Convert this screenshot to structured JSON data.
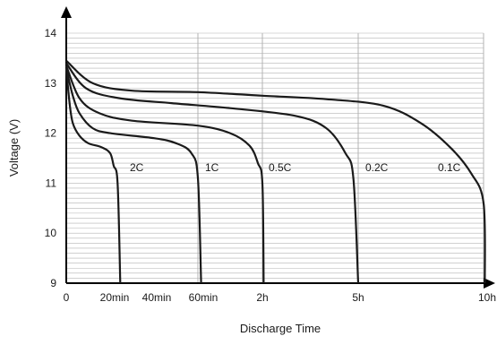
{
  "chart_data": {
    "type": "line",
    "title": "",
    "xlabel": "Discharge Time",
    "ylabel": "Voltage (V)",
    "ylim": [
      9,
      14
    ],
    "yticks": [
      9,
      10,
      11,
      12,
      13,
      14
    ],
    "xticks": [
      {
        "label": "0",
        "hours": 0
      },
      {
        "label": "20min",
        "hours": 0.333
      },
      {
        "label": "40min",
        "hours": 0.667
      },
      {
        "label": "60min",
        "hours": 1
      },
      {
        "label": "2h",
        "hours": 2
      },
      {
        "label": "5h",
        "hours": 5
      },
      {
        "label": "10h",
        "hours": 10
      }
    ],
    "grid": true,
    "line_color": "#1a1a1a",
    "grid_color": "#b3b3b3",
    "series": [
      {
        "name": "2C",
        "points": [
          [
            0,
            13.3
          ],
          [
            0.025,
            12.6
          ],
          [
            0.05,
            12.2
          ],
          [
            0.1,
            11.95
          ],
          [
            0.167,
            11.8
          ],
          [
            0.267,
            11.72
          ],
          [
            0.333,
            11.6
          ],
          [
            0.36,
            11.35
          ],
          [
            0.39,
            11.0
          ],
          [
            0.41,
            9.0
          ]
        ]
      },
      {
        "name": "1C",
        "points": [
          [
            0,
            13.3
          ],
          [
            0.05,
            12.75
          ],
          [
            0.1,
            12.4
          ],
          [
            0.2,
            12.1
          ],
          [
            0.333,
            12.0
          ],
          [
            0.667,
            11.9
          ],
          [
            0.833,
            11.8
          ],
          [
            0.95,
            11.6
          ],
          [
            1.0,
            11.1
          ],
          [
            1.05,
            9.0
          ]
        ]
      },
      {
        "name": "0.5C",
        "points": [
          [
            0,
            13.35
          ],
          [
            0.1,
            12.7
          ],
          [
            0.25,
            12.4
          ],
          [
            0.5,
            12.25
          ],
          [
            1.0,
            12.15
          ],
          [
            1.5,
            12.0
          ],
          [
            1.8,
            11.75
          ],
          [
            1.93,
            11.4
          ],
          [
            2.0,
            11.0
          ],
          [
            2.04,
            9.0
          ]
        ]
      },
      {
        "name": "0.2C",
        "points": [
          [
            0,
            13.4
          ],
          [
            0.15,
            12.9
          ],
          [
            0.4,
            12.7
          ],
          [
            0.8,
            12.6
          ],
          [
            1.5,
            12.5
          ],
          [
            3.0,
            12.35
          ],
          [
            4.0,
            12.1
          ],
          [
            4.6,
            11.6
          ],
          [
            4.85,
            11.1
          ],
          [
            5.0,
            9.0
          ]
        ]
      },
      {
        "name": "0.1C",
        "points": [
          [
            0,
            13.45
          ],
          [
            0.2,
            13.0
          ],
          [
            0.5,
            12.85
          ],
          [
            1.0,
            12.82
          ],
          [
            2.0,
            12.75
          ],
          [
            4.0,
            12.68
          ],
          [
            6.0,
            12.55
          ],
          [
            7.5,
            12.2
          ],
          [
            8.7,
            11.7
          ],
          [
            9.5,
            11.2
          ],
          [
            10,
            10.6
          ],
          [
            10.05,
            9.0
          ]
        ]
      }
    ]
  }
}
